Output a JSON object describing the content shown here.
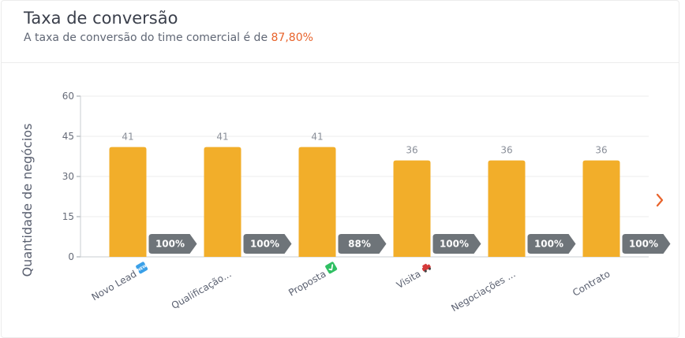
{
  "header": {
    "title": "Taxa de conversão",
    "subtitle_prefix": "A taxa de conversão do time comercial é de ",
    "rate": "87,80%"
  },
  "next_icon": "chevron-right-icon",
  "colors": {
    "bar": "#f2ae2a",
    "badge": "#6e7479",
    "accent": "#e8632b",
    "grid": "#ececec"
  },
  "chart_data": {
    "type": "bar",
    "title": "Taxa de conversão",
    "ylabel": "Quantidade de negócios",
    "xlabel": "",
    "ylim": [
      0,
      60
    ],
    "yticks": [
      0,
      15,
      30,
      45,
      60
    ],
    "grid": true,
    "categories": [
      "Novo Lead",
      "Qualificação...",
      "Proposta",
      "Visita",
      "Negociações ...",
      "Contrato"
    ],
    "category_emoji": [
      "new",
      "",
      "check",
      "car",
      "",
      ""
    ],
    "values": [
      41,
      41,
      41,
      36,
      36,
      36
    ],
    "conversion_labels": [
      "100%",
      "100%",
      "88%",
      "100%",
      "100%",
      "100%"
    ]
  }
}
